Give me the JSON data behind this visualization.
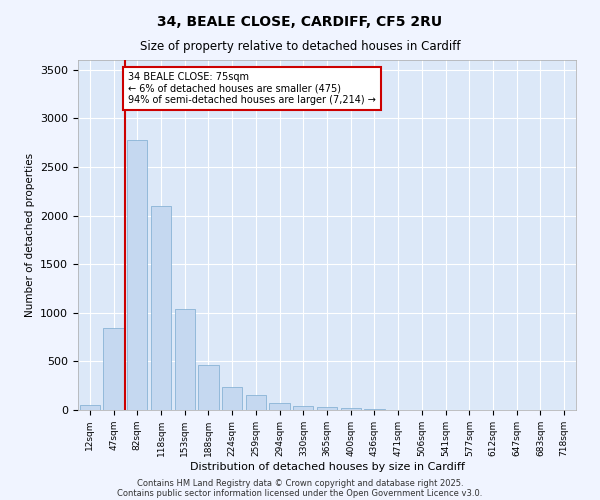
{
  "title1": "34, BEALE CLOSE, CARDIFF, CF5 2RU",
  "title2": "Size of property relative to detached houses in Cardiff",
  "xlabel": "Distribution of detached houses by size in Cardiff",
  "ylabel": "Number of detached properties",
  "categories": [
    "12sqm",
    "47sqm",
    "82sqm",
    "118sqm",
    "153sqm",
    "188sqm",
    "224sqm",
    "259sqm",
    "294sqm",
    "330sqm",
    "365sqm",
    "400sqm",
    "436sqm",
    "471sqm",
    "506sqm",
    "541sqm",
    "577sqm",
    "612sqm",
    "647sqm",
    "683sqm",
    "718sqm"
  ],
  "values": [
    50,
    840,
    2780,
    2100,
    1040,
    460,
    240,
    155,
    70,
    45,
    30,
    20,
    10,
    5,
    5,
    3,
    2,
    2,
    1,
    1,
    1
  ],
  "bar_color": "#c5d8f0",
  "bar_edge_color": "#7aaad0",
  "vline_x": 1.5,
  "vline_color": "#cc0000",
  "annotation_text": "34 BEALE CLOSE: 75sqm\n← 6% of detached houses are smaller (475)\n94% of semi-detached houses are larger (7,214) →",
  "annotation_box_color": "#cc0000",
  "ylim": [
    0,
    3600
  ],
  "yticks": [
    0,
    500,
    1000,
    1500,
    2000,
    2500,
    3000,
    3500
  ],
  "footer1": "Contains HM Land Registry data © Crown copyright and database right 2025.",
  "footer2": "Contains public sector information licensed under the Open Government Licence v3.0.",
  "bg_color": "#f0f4ff",
  "plot_bg_color": "#dce8f8"
}
